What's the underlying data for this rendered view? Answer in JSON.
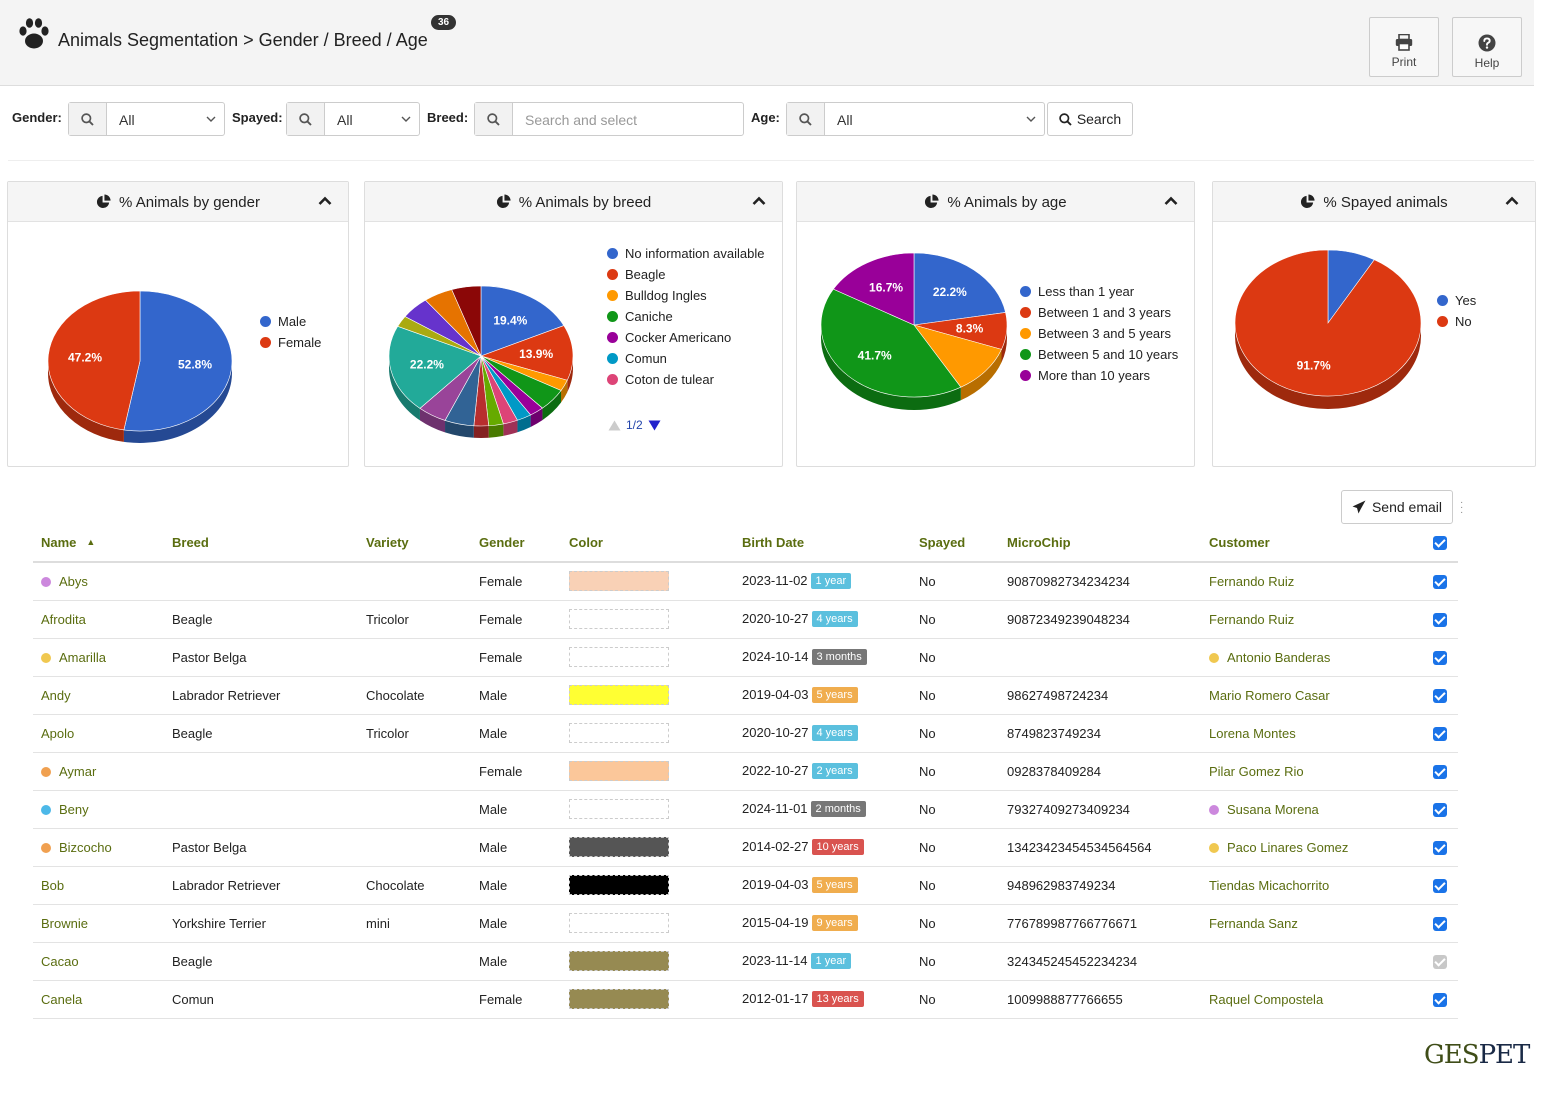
{
  "header": {
    "title": "Animals Segmentation > Gender / Breed / Age",
    "count": "36",
    "print_label": "Print",
    "help_label": "Help",
    "icons": [
      "paw-icon",
      "printer-icon",
      "help-icon"
    ]
  },
  "filters": {
    "gender_label": "Gender:",
    "gender_value": "All",
    "spayed_label": "Spayed:",
    "spayed_value": "All",
    "breed_label": "Breed:",
    "breed_placeholder": "Search and select",
    "age_label": "Age:",
    "age_value": "All",
    "search_label": "Search"
  },
  "panels": {
    "gender": {
      "title": "% Animals by gender"
    },
    "breed": {
      "title": "% Animals by breed",
      "pager": "1/2"
    },
    "age": {
      "title": "% Animals by age"
    },
    "spayed": {
      "title": "% Spayed animals"
    }
  },
  "chart_data": [
    {
      "type": "pie",
      "title": "% Animals by gender",
      "categories": [
        "Male",
        "Female"
      ],
      "values": [
        52.8,
        47.2
      ],
      "labels": [
        "52.8%",
        "47.2%"
      ],
      "colors": [
        "#3366cc",
        "#dc3912"
      ],
      "legend": "right"
    },
    {
      "type": "pie",
      "title": "% Animals by breed",
      "categories": [
        "No information available",
        "Beagle",
        "Bulldog Ingles",
        "Caniche",
        "Cocker Americano",
        "Comun",
        "Coton de tulear"
      ],
      "values": [
        19.4,
        13.9,
        2.8,
        5.6,
        2.8,
        2.8,
        2.8,
        2.8,
        2.8,
        5.6,
        5.6,
        22.2,
        2.8,
        5.6,
        5.6,
        5.6
      ],
      "labels": [
        "19.4%",
        "13.9%",
        "",
        "",
        "",
        "",
        "",
        "",
        "",
        "",
        "",
        "22.2%",
        "",
        "",
        "",
        ""
      ],
      "colors": [
        "#3366cc",
        "#dc3912",
        "#ff9900",
        "#109618",
        "#990099",
        "#0099c6",
        "#dd4477",
        "#66aa00",
        "#b82e2e",
        "#316395",
        "#994499",
        "#22aa99",
        "#aaaa11",
        "#6633cc",
        "#e67300",
        "#8b0707"
      ],
      "legend": "right"
    },
    {
      "type": "pie",
      "title": "% Animals by age",
      "categories": [
        "Less than 1 year",
        "Between 1 and 3 years",
        "Between 3 and 5 years",
        "Between 5 and 10 years",
        "More than 10 years"
      ],
      "values": [
        22.2,
        8.3,
        11.1,
        41.7,
        16.7
      ],
      "labels": [
        "22.2%",
        "8.3%",
        "",
        "41.7%",
        "16.7%"
      ],
      "colors": [
        "#3366cc",
        "#dc3912",
        "#ff9900",
        "#109618",
        "#990099"
      ],
      "legend": "right"
    },
    {
      "type": "pie",
      "title": "% Spayed animals",
      "categories": [
        "Yes",
        "No"
      ],
      "values": [
        8.3,
        91.7
      ],
      "labels": [
        "",
        "91.7%"
      ],
      "colors": [
        "#3366cc",
        "#dc3912"
      ],
      "legend": "right"
    }
  ],
  "actions": {
    "send_email": "Send email"
  },
  "table": {
    "columns": [
      "Name",
      "Breed",
      "Variety",
      "Gender",
      "Color",
      "Birth Date",
      "Spayed",
      "MicroChip",
      "Customer"
    ],
    "rows": [
      {
        "name": "Abys",
        "name_dot": "#cc88dd",
        "breed": "",
        "variety": "",
        "gender": "Female",
        "swatch": "#f9d1b6",
        "birth": "2023-11-02",
        "age": "1 year",
        "age_color": "#5bc0de",
        "spayed": "No",
        "chip": "90870982734234234",
        "customer": "Fernando Ruiz",
        "cust_dot": "",
        "checked": true
      },
      {
        "name": "Afrodita",
        "name_dot": "",
        "breed": "Beagle",
        "variety": "Tricolor",
        "gender": "Female",
        "swatch": "",
        "birth": "2020-10-27",
        "age": "4 years",
        "age_color": "#5bc0de",
        "spayed": "No",
        "chip": "90872349239048234",
        "customer": "Fernando Ruiz",
        "cust_dot": "",
        "checked": true
      },
      {
        "name": "Amarilla",
        "name_dot": "#f0c850",
        "breed": "Pastor Belga",
        "variety": "",
        "gender": "Female",
        "swatch": "",
        "birth": "2024-10-14",
        "age": "3 months",
        "age_color": "#777777",
        "spayed": "No",
        "chip": "",
        "customer": "Antonio Banderas",
        "cust_dot": "#f0c850",
        "checked": true
      },
      {
        "name": "Andy",
        "name_dot": "",
        "breed": "Labrador Retriever",
        "variety": "Chocolate",
        "gender": "Male",
        "swatch": "#ffff33",
        "birth": "2019-04-03",
        "age": "5 years",
        "age_color": "#f0ad4e",
        "spayed": "No",
        "chip": "98627498724234",
        "customer": "Mario Romero Casar",
        "cust_dot": "",
        "checked": true
      },
      {
        "name": "Apolo",
        "name_dot": "",
        "breed": "Beagle",
        "variety": "Tricolor",
        "gender": "Male",
        "swatch": "",
        "birth": "2020-10-27",
        "age": "4 years",
        "age_color": "#5bc0de",
        "spayed": "No",
        "chip": "8749823749234",
        "customer": "Lorena Montes",
        "cust_dot": "",
        "checked": true
      },
      {
        "name": "Aymar",
        "name_dot": "#f0a050",
        "breed": "",
        "variety": "",
        "gender": "Female",
        "swatch": "#fbc79a",
        "birth": "2022-10-27",
        "age": "2 years",
        "age_color": "#5bc0de",
        "spayed": "No",
        "chip": "0928378409284",
        "customer": "Pilar Gomez Rio",
        "cust_dot": "",
        "checked": true
      },
      {
        "name": "Beny",
        "name_dot": "#4cb8e8",
        "breed": "",
        "variety": "",
        "gender": "Male",
        "swatch": "",
        "birth": "2024-11-01",
        "age": "2 months",
        "age_color": "#777777",
        "spayed": "No",
        "chip": "79327409273409234",
        "customer": "Susana Morena",
        "cust_dot": "#cc88dd",
        "checked": true
      },
      {
        "name": "Bizcocho",
        "name_dot": "#f0a050",
        "breed": "Pastor Belga",
        "variety": "",
        "gender": "Male",
        "swatch": "#555555",
        "birth": "2014-02-27",
        "age": "10 years",
        "age_color": "#d9534f",
        "spayed": "No",
        "chip": "13423423454534564564",
        "customer": "Paco Linares Gomez",
        "cust_dot": "#f0c850",
        "checked": true
      },
      {
        "name": "Bob",
        "name_dot": "",
        "breed": "Labrador Retriever",
        "variety": "Chocolate",
        "gender": "Male",
        "swatch": "#000000",
        "birth": "2019-04-03",
        "age": "5 years",
        "age_color": "#f0ad4e",
        "spayed": "No",
        "chip": "948962983749234",
        "customer": "Tiendas Micachorrito",
        "cust_dot": "",
        "checked": true
      },
      {
        "name": "Brownie",
        "name_dot": "",
        "breed": "Yorkshire Terrier",
        "variety": "mini",
        "gender": "Male",
        "swatch": "",
        "birth": "2015-04-19",
        "age": "9 years",
        "age_color": "#f0ad4e",
        "spayed": "No",
        "chip": "776789987766776671",
        "customer": "Fernanda Sanz",
        "cust_dot": "",
        "checked": true
      },
      {
        "name": "Cacao",
        "name_dot": "",
        "breed": "Beagle",
        "variety": "",
        "gender": "Male",
        "swatch": "#968a52",
        "birth": "2023-11-14",
        "age": "1 year",
        "age_color": "#5bc0de",
        "spayed": "No",
        "chip": "324345245452234234",
        "customer": "",
        "cust_dot": "",
        "checked": false
      },
      {
        "name": "Canela",
        "name_dot": "",
        "breed": "Comun",
        "variety": "",
        "gender": "Female",
        "swatch": "#968a52",
        "birth": "2012-01-17",
        "age": "13 years",
        "age_color": "#d9534f",
        "spayed": "No",
        "chip": "1009988877766655",
        "customer": "Raquel Compostela",
        "cust_dot": "",
        "checked": true
      }
    ]
  },
  "brand": {
    "part1": "GES",
    "part2": "PET"
  }
}
